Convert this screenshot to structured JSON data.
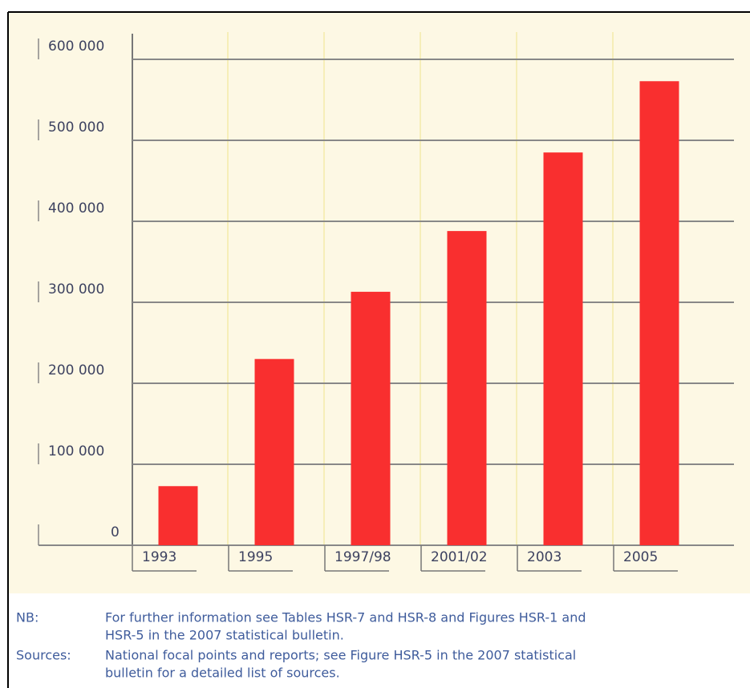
{
  "chart_data": {
    "type": "bar",
    "categories": [
      "1993",
      "1995",
      "1997/98",
      "2001/02",
      "2003",
      "2005"
    ],
    "values": [
      73000,
      230000,
      313000,
      388000,
      485000,
      573000
    ],
    "color": "#f92f2f",
    "ylim": [
      0,
      600000
    ],
    "yticks": [
      {
        "value": 0,
        "label": "0"
      },
      {
        "value": 100000,
        "label": "100 000"
      },
      {
        "value": 200000,
        "label": "200 000"
      },
      {
        "value": 300000,
        "label": "300 000"
      },
      {
        "value": 400000,
        "label": "400 000"
      },
      {
        "value": 500000,
        "label": "500 000"
      },
      {
        "value": 600000,
        "label": "600 000"
      }
    ],
    "grid": true,
    "notes": [
      {
        "label": "NB:",
        "lines": [
          "For further information see Tables HSR-7 and HSR-8 and Figures HSR-1 and",
          "HSR-5 in the 2007 statistical bulletin."
        ]
      },
      {
        "label": "Sources:",
        "lines": [
          "National focal points and reports; see Figure HSR-5 in the 2007 statistical",
          "bulletin for a detailed list of sources."
        ]
      }
    ]
  }
}
